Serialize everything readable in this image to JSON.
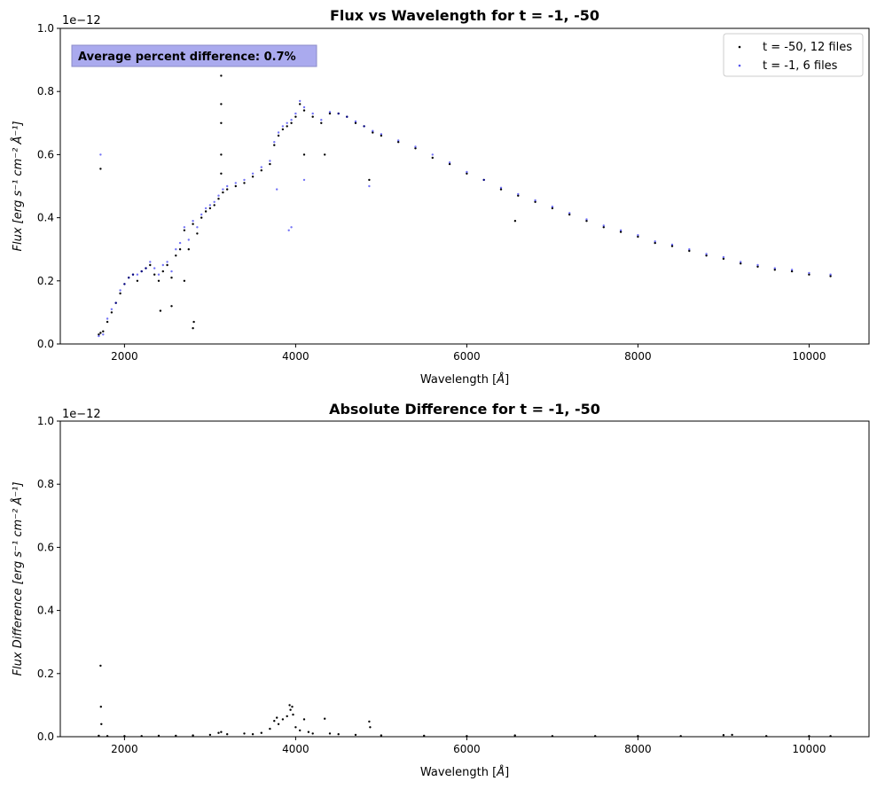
{
  "chart_data": [
    {
      "type": "scatter",
      "title": "Flux vs Wavelength for t = -1, -50",
      "xlabel_text": "Wavelength [",
      "xlabel_unit": "Å",
      "xlabel_close": "]",
      "ylabel_text": "Flux [erg s⁻¹ cm⁻² Å⁻¹]",
      "offset_text": "1e−12",
      "xlim": [
        1250,
        10700
      ],
      "ylim": [
        0,
        1.0
      ],
      "xticks": [
        2000,
        4000,
        6000,
        8000,
        10000
      ],
      "xtick_labels": [
        "2000",
        "4000",
        "6000",
        "8000",
        "10000"
      ],
      "yticks": [
        0,
        0.2,
        0.4,
        0.6,
        0.8,
        1.0
      ],
      "ytick_labels": [
        "0.0",
        "0.2",
        "0.4",
        "0.6",
        "0.8",
        "1.0"
      ],
      "annotation": "Average percent difference: 0.7%",
      "annotation_bg": "#aaaaee",
      "legend_position": "top-right",
      "series": [
        {
          "name": "t = -50, 12 files",
          "color": "#000000",
          "points": [
            [
              1700,
              0.03
            ],
            [
              1720,
              0.035
            ],
            [
              1750,
              0.04
            ],
            [
              1800,
              0.07
            ],
            [
              1850,
              0.1
            ],
            [
              1900,
              0.13
            ],
            [
              1950,
              0.16
            ],
            [
              2000,
              0.19
            ],
            [
              2050,
              0.21
            ],
            [
              2100,
              0.22
            ],
            [
              2150,
              0.2
            ],
            [
              2200,
              0.23
            ],
            [
              2250,
              0.24
            ],
            [
              2300,
              0.25
            ],
            [
              2350,
              0.22
            ],
            [
              2400,
              0.2
            ],
            [
              2450,
              0.23
            ],
            [
              2500,
              0.25
            ],
            [
              2550,
              0.21
            ],
            [
              2600,
              0.28
            ],
            [
              2650,
              0.3
            ],
            [
              2700,
              0.36
            ],
            [
              2750,
              0.3
            ],
            [
              2800,
              0.38
            ],
            [
              2850,
              0.35
            ],
            [
              2900,
              0.4
            ],
            [
              2950,
              0.42
            ],
            [
              3000,
              0.43
            ],
            [
              3050,
              0.44
            ],
            [
              3100,
              0.46
            ],
            [
              3150,
              0.48
            ],
            [
              3200,
              0.49
            ],
            [
              3300,
              0.5
            ],
            [
              3400,
              0.51
            ],
            [
              3500,
              0.53
            ],
            [
              3600,
              0.55
            ],
            [
              3700,
              0.57
            ],
            [
              3750,
              0.63
            ],
            [
              3800,
              0.66
            ],
            [
              3850,
              0.68
            ],
            [
              3900,
              0.69
            ],
            [
              3950,
              0.7
            ],
            [
              4000,
              0.72
            ],
            [
              4050,
              0.76
            ],
            [
              4100,
              0.74
            ],
            [
              4200,
              0.72
            ],
            [
              4300,
              0.7
            ],
            [
              4400,
              0.73
            ],
            [
              4500,
              0.73
            ],
            [
              4600,
              0.72
            ],
            [
              4700,
              0.7
            ],
            [
              4800,
              0.69
            ],
            [
              4900,
              0.67
            ],
            [
              5000,
              0.66
            ],
            [
              5200,
              0.64
            ],
            [
              5400,
              0.62
            ],
            [
              5600,
              0.59
            ],
            [
              5800,
              0.57
            ],
            [
              6000,
              0.54
            ],
            [
              6200,
              0.52
            ],
            [
              6400,
              0.49
            ],
            [
              6600,
              0.47
            ],
            [
              6800,
              0.45
            ],
            [
              7000,
              0.43
            ],
            [
              7200,
              0.41
            ],
            [
              7400,
              0.39
            ],
            [
              7600,
              0.37
            ],
            [
              7800,
              0.355
            ],
            [
              8000,
              0.34
            ],
            [
              8200,
              0.32
            ],
            [
              8400,
              0.31
            ],
            [
              8600,
              0.295
            ],
            [
              8800,
              0.28
            ],
            [
              9000,
              0.27
            ],
            [
              9200,
              0.255
            ],
            [
              9400,
              0.245
            ],
            [
              9600,
              0.235
            ],
            [
              9800,
              0.23
            ],
            [
              10000,
              0.22
            ],
            [
              10250,
              0.215
            ],
            [
              1720,
              0.555
            ],
            [
              2420,
              0.105
            ],
            [
              2800,
              0.05
            ],
            [
              2810,
              0.07
            ],
            [
              3130,
              0.85
            ],
            [
              3130,
              0.76
            ],
            [
              3130,
              0.7
            ],
            [
              3130,
              0.6
            ],
            [
              3130,
              0.54
            ],
            [
              2700,
              0.2
            ],
            [
              2550,
              0.12
            ],
            [
              4100,
              0.6
            ],
            [
              4340,
              0.6
            ],
            [
              4860,
              0.52
            ],
            [
              6565,
              0.39
            ]
          ]
        },
        {
          "name": "t = -1, 6 files",
          "color": "#0000ee",
          "points": [
            [
              1700,
              0.025
            ],
            [
              1750,
              0.03
            ],
            [
              1800,
              0.08
            ],
            [
              1850,
              0.11
            ],
            [
              1900,
              0.13
            ],
            [
              1950,
              0.17
            ],
            [
              2000,
              0.19
            ],
            [
              2050,
              0.21
            ],
            [
              2100,
              0.22
            ],
            [
              2150,
              0.22
            ],
            [
              2200,
              0.23
            ],
            [
              2250,
              0.24
            ],
            [
              2300,
              0.26
            ],
            [
              2350,
              0.24
            ],
            [
              2400,
              0.22
            ],
            [
              2450,
              0.25
            ],
            [
              2500,
              0.26
            ],
            [
              2550,
              0.23
            ],
            [
              2600,
              0.3
            ],
            [
              2650,
              0.32
            ],
            [
              2700,
              0.37
            ],
            [
              2750,
              0.33
            ],
            [
              2800,
              0.39
            ],
            [
              2850,
              0.37
            ],
            [
              2900,
              0.41
            ],
            [
              2950,
              0.43
            ],
            [
              3000,
              0.44
            ],
            [
              3050,
              0.45
            ],
            [
              3100,
              0.47
            ],
            [
              3150,
              0.49
            ],
            [
              3200,
              0.5
            ],
            [
              3300,
              0.51
            ],
            [
              3400,
              0.52
            ],
            [
              3500,
              0.54
            ],
            [
              3600,
              0.56
            ],
            [
              3700,
              0.58
            ],
            [
              3750,
              0.64
            ],
            [
              3800,
              0.67
            ],
            [
              3850,
              0.69
            ],
            [
              3900,
              0.7
            ],
            [
              3950,
              0.71
            ],
            [
              4000,
              0.73
            ],
            [
              4050,
              0.77
            ],
            [
              4100,
              0.75
            ],
            [
              4200,
              0.73
            ],
            [
              4300,
              0.71
            ],
            [
              4400,
              0.735
            ],
            [
              4500,
              0.73
            ],
            [
              4600,
              0.72
            ],
            [
              4700,
              0.705
            ],
            [
              4800,
              0.69
            ],
            [
              4900,
              0.675
            ],
            [
              5000,
              0.665
            ],
            [
              5200,
              0.645
            ],
            [
              5400,
              0.625
            ],
            [
              5600,
              0.6
            ],
            [
              5800,
              0.575
            ],
            [
              6000,
              0.545
            ],
            [
              6200,
              0.52
            ],
            [
              6400,
              0.495
            ],
            [
              6600,
              0.475
            ],
            [
              6800,
              0.455
            ],
            [
              7000,
              0.435
            ],
            [
              7200,
              0.415
            ],
            [
              7400,
              0.395
            ],
            [
              7600,
              0.375
            ],
            [
              7800,
              0.36
            ],
            [
              8000,
              0.345
            ],
            [
              8200,
              0.325
            ],
            [
              8400,
              0.315
            ],
            [
              8600,
              0.3
            ],
            [
              8800,
              0.285
            ],
            [
              9000,
              0.275
            ],
            [
              9200,
              0.26
            ],
            [
              9400,
              0.25
            ],
            [
              9600,
              0.24
            ],
            [
              9800,
              0.235
            ],
            [
              10000,
              0.225
            ],
            [
              10250,
              0.22
            ],
            [
              1720,
              0.6
            ],
            [
              3920,
              0.36
            ],
            [
              3950,
              0.37
            ],
            [
              4100,
              0.52
            ],
            [
              4860,
              0.5
            ],
            [
              3780,
              0.49
            ]
          ]
        }
      ]
    },
    {
      "type": "scatter",
      "title": "Absolute Difference for t = -1, -50",
      "xlabel_text": "Wavelength [",
      "xlabel_unit": "Å",
      "xlabel_close": "]",
      "ylabel_text": "Flux Difference [erg s⁻¹ cm⁻² Å⁻¹]",
      "offset_text": "1e−12",
      "xlim": [
        1250,
        10700
      ],
      "ylim": [
        0,
        1.0
      ],
      "xticks": [
        2000,
        4000,
        6000,
        8000,
        10000
      ],
      "xtick_labels": [
        "2000",
        "4000",
        "6000",
        "8000",
        "10000"
      ],
      "yticks": [
        0,
        0.2,
        0.4,
        0.6,
        0.8,
        1.0
      ],
      "ytick_labels": [
        "0.0",
        "0.2",
        "0.4",
        "0.6",
        "0.8",
        "1.0"
      ],
      "series": [
        {
          "color": "#000000",
          "points": [
            [
              1700,
              0.003
            ],
            [
              1720,
              0.225
            ],
            [
              1725,
              0.095
            ],
            [
              1730,
              0.04
            ],
            [
              1800,
              0.002
            ],
            [
              2000,
              0.002
            ],
            [
              2200,
              0.002
            ],
            [
              2400,
              0.003
            ],
            [
              2600,
              0.003
            ],
            [
              2800,
              0.004
            ],
            [
              3000,
              0.006
            ],
            [
              3100,
              0.012
            ],
            [
              3130,
              0.015
            ],
            [
              3200,
              0.008
            ],
            [
              3400,
              0.01
            ],
            [
              3500,
              0.008
            ],
            [
              3600,
              0.012
            ],
            [
              3700,
              0.025
            ],
            [
              3750,
              0.05
            ],
            [
              3780,
              0.06
            ],
            [
              3800,
              0.04
            ],
            [
              3850,
              0.055
            ],
            [
              3900,
              0.065
            ],
            [
              3930,
              0.1
            ],
            [
              3940,
              0.085
            ],
            [
              3960,
              0.095
            ],
            [
              3970,
              0.07
            ],
            [
              4000,
              0.03
            ],
            [
              4050,
              0.02
            ],
            [
              4100,
              0.055
            ],
            [
              4150,
              0.015
            ],
            [
              4200,
              0.01
            ],
            [
              4340,
              0.057
            ],
            [
              4400,
              0.01
            ],
            [
              4500,
              0.008
            ],
            [
              4700,
              0.006
            ],
            [
              4860,
              0.048
            ],
            [
              4870,
              0.03
            ],
            [
              5000,
              0.004
            ],
            [
              5500,
              0.003
            ],
            [
              6000,
              0.002
            ],
            [
              6563,
              0.004
            ],
            [
              7000,
              0.002
            ],
            [
              7500,
              0.002
            ],
            [
              8000,
              0.002
            ],
            [
              8500,
              0.002
            ],
            [
              9000,
              0.005
            ],
            [
              9100,
              0.006
            ],
            [
              9500,
              0.002
            ],
            [
              10000,
              0.002
            ],
            [
              10250,
              0.002
            ]
          ]
        }
      ]
    }
  ]
}
